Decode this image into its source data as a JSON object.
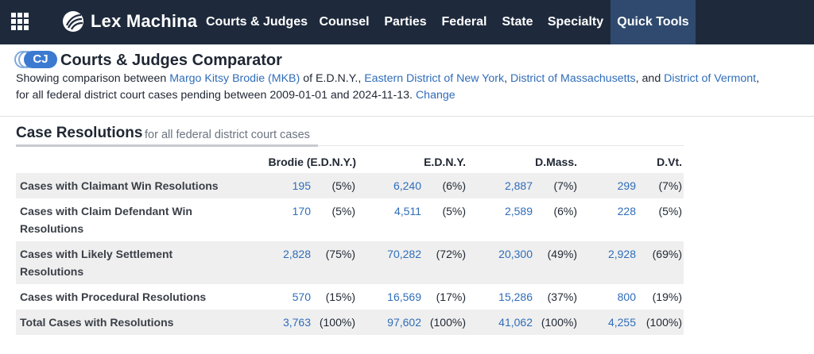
{
  "nav": {
    "logo_text": "Lex Machina",
    "items": [
      "Courts & Judges",
      "Counsel",
      "Parties",
      "Federal",
      "State",
      "Specialty",
      "Quick Tools"
    ],
    "active_index": 6
  },
  "header": {
    "badge": "CJ",
    "title": "Courts & Judges Comparator",
    "desc_prefix": "Showing comparison between",
    "judge_link": "Margo Kitsy Brodie (MKB)",
    "desc_of": "of E.D.N.Y.,",
    "court_link_1": "Eastern District of New York",
    "comma": ",",
    "court_link_2": "District of Massachusetts",
    "desc_and": ", and",
    "court_link_3": "District of Vermont",
    "desc_line2": "for all federal district court cases pending between 2009-01-01 and 2024-11-13.",
    "change_link": "Change"
  },
  "section": {
    "title": "Case Resolutions",
    "subtitle": "for all federal district court cases"
  },
  "table": {
    "columns": [
      "Brodie (E.D.N.Y.)",
      "E.D.N.Y.",
      "D.Mass.",
      "D.Vt."
    ],
    "rows": [
      {
        "label_lines": [
          "Cases with Claimant Win Resolutions"
        ],
        "cells": [
          [
            "195",
            "(5%)"
          ],
          [
            "6,240",
            "(6%)"
          ],
          [
            "2,887",
            "(7%)"
          ],
          [
            "299",
            "(7%)"
          ]
        ]
      },
      {
        "label_lines": [
          "Cases with Claim Defendant Win",
          "Resolutions"
        ],
        "cells": [
          [
            "170",
            "(5%)"
          ],
          [
            "4,511",
            "(5%)"
          ],
          [
            "2,589",
            "(6%)"
          ],
          [
            "228",
            "(5%)"
          ]
        ]
      },
      {
        "label_lines": [
          "Cases with Likely Settlement",
          "Resolutions"
        ],
        "cells": [
          [
            "2,828",
            "(75%)"
          ],
          [
            "70,282",
            "(72%)"
          ],
          [
            "20,300",
            "(49%)"
          ],
          [
            "2,928",
            "(69%)"
          ]
        ]
      },
      {
        "label_lines": [
          "Cases with Procedural Resolutions"
        ],
        "cells": [
          [
            "570",
            "(15%)"
          ],
          [
            "16,569",
            "(17%)"
          ],
          [
            "15,286",
            "(37%)"
          ],
          [
            "800",
            "(19%)"
          ]
        ]
      },
      {
        "label_lines": [
          "Total Cases with Resolutions"
        ],
        "cells": [
          [
            "3,763",
            "(100%)"
          ],
          [
            "97,602",
            "(100%)"
          ],
          [
            "41,062",
            "(100%)"
          ],
          [
            "4,255",
            "(100%)"
          ]
        ]
      }
    ]
  },
  "colors": {
    "nav_bg": "#1e2a3c",
    "nav_active": "#2f4a6e",
    "link": "#2f6db9",
    "badge": "#3b7ad0",
    "row_shade": "#efefef"
  }
}
